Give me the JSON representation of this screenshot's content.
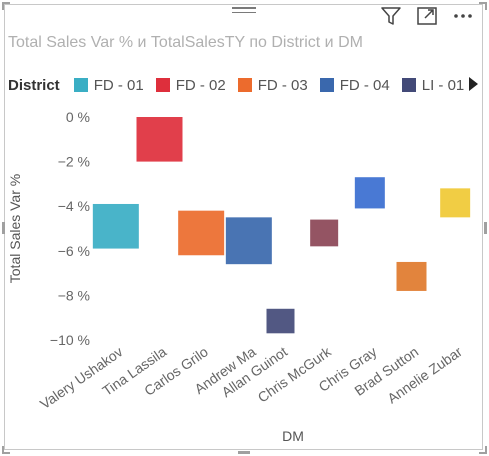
{
  "visual": {
    "title": "Total Sales Var % и TotalSalesTY по District и DM",
    "icons": [
      "filter-icon",
      "focus-mode-icon",
      "more-options-icon"
    ]
  },
  "legend": {
    "title": "District",
    "items": [
      {
        "label": "FD - 01",
        "color": "#3aaec4"
      },
      {
        "label": "FD - 02",
        "color": "#de2f3c"
      },
      {
        "label": "FD - 03",
        "color": "#ec6b2d"
      },
      {
        "label": "FD - 04",
        "color": "#3a68ad"
      },
      {
        "label": "LI - 01",
        "color": "#434a78"
      }
    ]
  },
  "chart_data": {
    "type": "bar",
    "title": "Total Sales Var % и TotalSalesTY по District и DM",
    "xlabel": "DM",
    "ylabel": "Total Sales Var %",
    "ylim": [
      -10,
      0
    ],
    "yticks": [
      "0 %",
      "−2 %",
      "−4 %",
      "−6 %",
      "−8 %",
      "−10 %"
    ],
    "yticks_values": [
      0,
      -2,
      -4,
      -6,
      -8,
      -10
    ],
    "grid": false,
    "categories": [
      "Valery Ushakov",
      "Tina Lassila",
      "Carlos Grilo",
      "Andrew Ma",
      "Allan Guinot",
      "Chris McGurk",
      "Chris Gray",
      "Brad Sutton",
      "Annelie Zubar"
    ],
    "bars": [
      {
        "category": "Valery Ushakov",
        "low": -5.9,
        "high": -3.9,
        "color": "#3aaec4"
      },
      {
        "category": "Tina Lassila",
        "low": -2.0,
        "high": 0.0,
        "color": "#de2f3c"
      },
      {
        "category": "Carlos Grilo",
        "low": -6.2,
        "high": -4.2,
        "color": "#ec6b2d"
      },
      {
        "category": "Andrew Ma",
        "low": -6.6,
        "high": -4.5,
        "color": "#3a68ad"
      },
      {
        "category": "Allan Guinot",
        "low": -9.7,
        "high": -8.6,
        "color": "#434a78"
      },
      {
        "category": "Chris McGurk",
        "low": -5.8,
        "high": -4.6,
        "color": "#8b4556"
      },
      {
        "category": "Chris Gray",
        "low": -4.1,
        "high": -2.7,
        "color": "#3a6ed0"
      },
      {
        "category": "Brad Sutton",
        "low": -7.8,
        "high": -6.5,
        "color": "#e07a2c"
      },
      {
        "category": "Annelie Zubar",
        "low": -4.5,
        "high": -3.2,
        "color": "#f0c934"
      }
    ]
  }
}
